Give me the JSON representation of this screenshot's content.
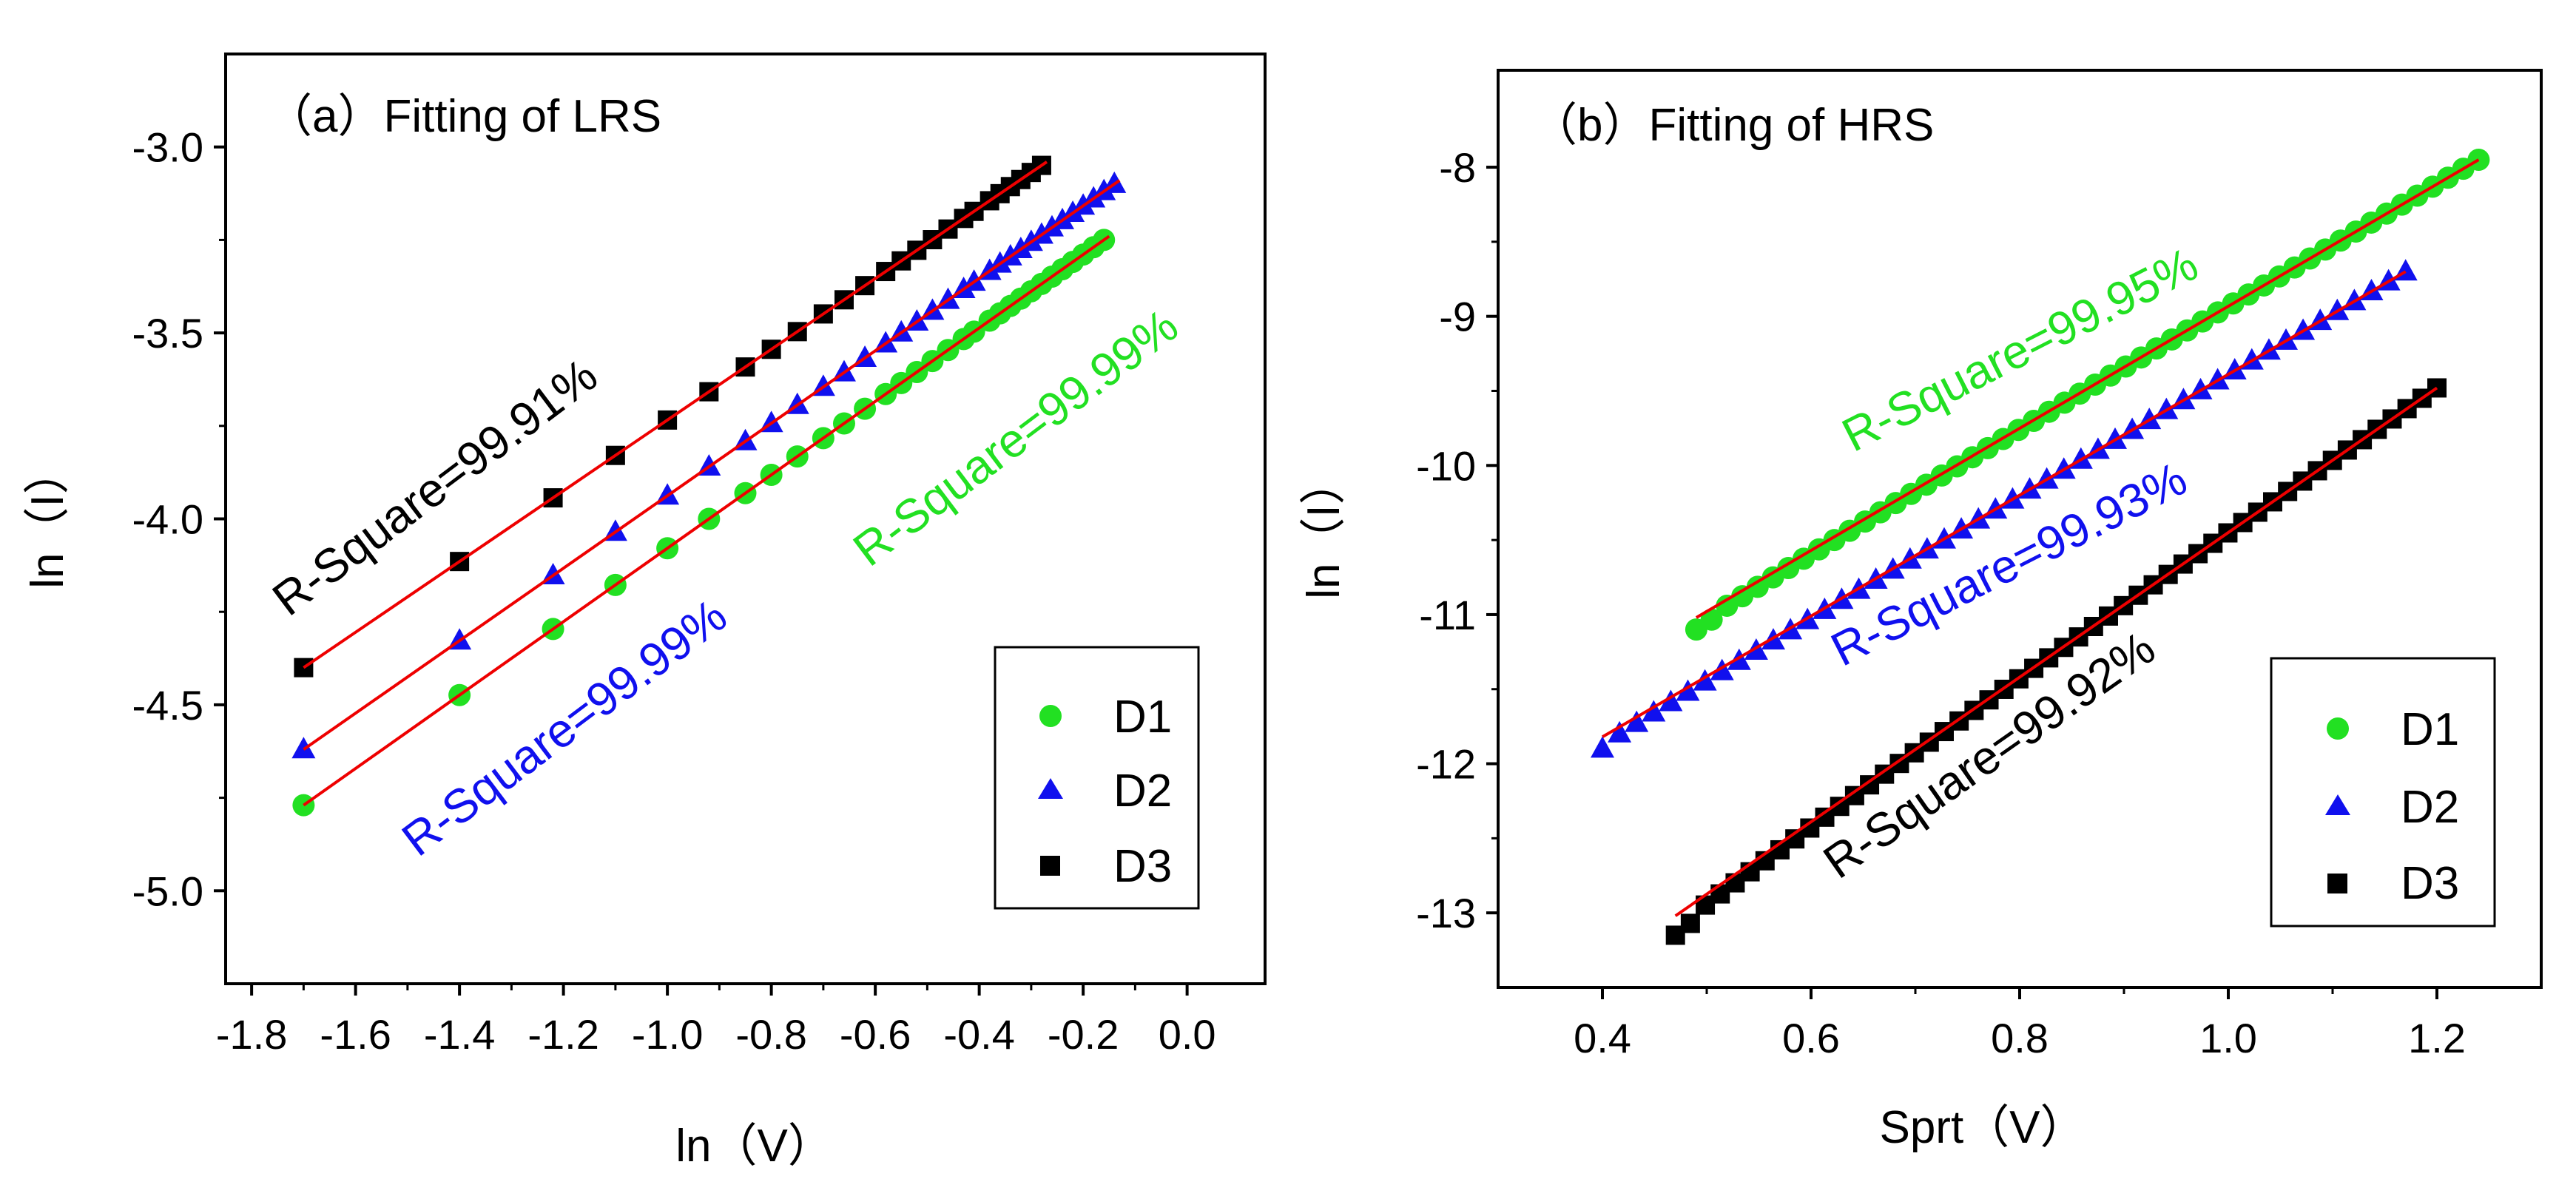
{
  "chart_data": [
    {
      "type": "scatter",
      "title": "（a）Fitting of LRS",
      "xlabel": "ln（V）",
      "ylabel": "ln（I）",
      "xlim": [
        -1.85,
        0.15
      ],
      "ylim": [
        -5.25,
        -2.75
      ],
      "x_ticks": [
        -1.8,
        -1.6,
        -1.4,
        -1.2,
        -1.0,
        -0.8,
        -0.6,
        -0.4,
        -0.2,
        0.0
      ],
      "x_tick_labels": [
        "-1.8",
        "-1.6",
        "-1.4",
        "-1.2",
        "-1.0",
        "-0.8",
        "-0.6",
        "-0.4",
        "-0.2",
        "0.0"
      ],
      "y_ticks": [
        -5.0,
        -4.5,
        -4.0,
        -3.5,
        -3.0
      ],
      "y_tick_labels": [
        "-5.0",
        "-4.5",
        "-4.0",
        "-3.5",
        "-3.0"
      ],
      "legend": [
        "D1",
        "D2",
        "D3"
      ],
      "legend_position": "bottom-right",
      "series": [
        {
          "name": "D1",
          "marker": "circle",
          "color": "#22e022",
          "x": [
            -1.7,
            -1.4,
            -1.22,
            -1.1,
            -1.0,
            -0.92,
            -0.85,
            -0.8,
            -0.75,
            -0.7,
            -0.66,
            -0.62,
            -0.58,
            -0.55,
            -0.52,
            -0.49,
            -0.46,
            -0.43,
            -0.41,
            -0.38,
            -0.36,
            -0.34,
            -0.32,
            -0.3,
            -0.28,
            -0.26,
            -0.24,
            -0.22,
            -0.2,
            -0.18,
            -0.16
          ],
          "fit": {
            "x": [
              -1.7,
              -0.15
            ],
            "y": [
              -4.77,
              -3.24
            ],
            "r_square": "R-Square=99.99%"
          }
        },
        {
          "name": "D2",
          "marker": "triangle",
          "color": "#1010ee",
          "x": [
            -1.7,
            -1.4,
            -1.22,
            -1.1,
            -1.0,
            -0.92,
            -0.85,
            -0.8,
            -0.75,
            -0.7,
            -0.66,
            -0.62,
            -0.58,
            -0.55,
            -0.52,
            -0.49,
            -0.46,
            -0.43,
            -0.41,
            -0.38,
            -0.36,
            -0.34,
            -0.32,
            -0.3,
            -0.28,
            -0.26,
            -0.24,
            -0.22,
            -0.2,
            -0.18,
            -0.16,
            -0.14
          ],
          "fit": {
            "x": [
              -1.7,
              -0.13
            ],
            "y": [
              -4.62,
              -3.09
            ],
            "r_square": "R-Square=99.99%"
          }
        },
        {
          "name": "D3",
          "marker": "square",
          "color": "#000000",
          "x": [
            -1.7,
            -1.4,
            -1.22,
            -1.1,
            -1.0,
            -0.92,
            -0.85,
            -0.8,
            -0.75,
            -0.7,
            -0.66,
            -0.62,
            -0.58,
            -0.55,
            -0.52,
            -0.49,
            -0.46,
            -0.43,
            -0.41,
            -0.38,
            -0.36,
            -0.34,
            -0.32,
            -0.3,
            -0.28
          ],
          "fit": {
            "x": [
              -1.7,
              -0.27
            ],
            "y": [
              -4.4,
              -3.04
            ],
            "r_square": "R-Square=99.91%"
          }
        }
      ]
    },
    {
      "type": "scatter",
      "title": "（b）Fitting of HRS",
      "xlabel": "Sprt（V）",
      "ylabel": "ln（I）",
      "xlim": [
        0.3,
        1.3
      ],
      "ylim": [
        -13.5,
        -7.35
      ],
      "x_ticks": [
        0.4,
        0.6,
        0.8,
        1.0,
        1.2
      ],
      "x_tick_labels": [
        "0.4",
        "0.6",
        "0.8",
        "1.0",
        "1.2"
      ],
      "y_ticks": [
        -13,
        -12,
        -11,
        -10,
        -9,
        -8
      ],
      "y_tick_labels": [
        "-13",
        "-12",
        "-11",
        "-10",
        "-9",
        "-8"
      ],
      "legend": [
        "D1",
        "D2",
        "D3"
      ],
      "legend_position": "bottom-right",
      "series": [
        {
          "name": "D1",
          "marker": "circle",
          "color": "#22e022",
          "x_range": [
            0.49,
            1.24
          ],
          "y_range": [
            -11.1,
            -7.95
          ],
          "n_points": 52,
          "fit": {
            "x": [
              0.49,
              1.24
            ],
            "y": [
              -11.02,
              -7.95
            ],
            "r_square": "R-Square=99.95%"
          }
        },
        {
          "name": "D2",
          "marker": "triangle",
          "color": "#1010ee",
          "x_range": [
            0.4,
            1.17
          ],
          "y_range": [
            -11.9,
            -8.65
          ],
          "n_points": 48,
          "fit": {
            "x": [
              0.4,
              1.17
            ],
            "y": [
              -11.82,
              -8.7
            ],
            "r_square": "R-Square=99.93%"
          }
        },
        {
          "name": "D3",
          "marker": "square",
          "color": "#000000",
          "x_range": [
            0.47,
            1.2
          ],
          "y_range": [
            -13.15,
            -9.45
          ],
          "n_points": 52,
          "fit": {
            "x": [
              0.47,
              1.2
            ],
            "y": [
              -13.02,
              -9.48
            ],
            "r_square": "R-Square=99.92%"
          }
        }
      ]
    }
  ]
}
